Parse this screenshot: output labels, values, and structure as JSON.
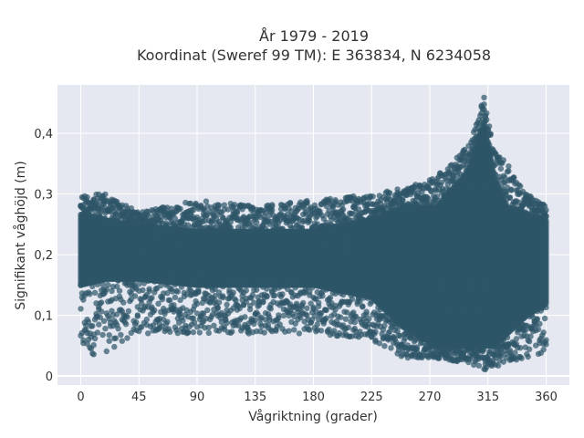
{
  "chart_data": {
    "type": "scatter",
    "title": "År 1979 - 2019",
    "subtitle": "Koordinat (Sweref 99 TM): E 363834, N 6234058",
    "xlabel": "Vågriktning (grader)",
    "ylabel": "Signifikant våghöjd (m)",
    "xlim": [
      -18,
      378
    ],
    "ylim": [
      -0.015,
      0.48
    ],
    "x_ticks": [
      0,
      45,
      90,
      135,
      180,
      225,
      270,
      315,
      360
    ],
    "x_tick_labels": [
      "0",
      "45",
      "90",
      "135",
      "180",
      "225",
      "270",
      "315",
      "360"
    ],
    "y_ticks": [
      0,
      0.1,
      0.2,
      0.3,
      0.4
    ],
    "y_tick_labels": [
      "0",
      "0,1",
      "0,2",
      "0,3",
      "0,4"
    ],
    "grid": true,
    "marker_color": "#2e5568",
    "background_color": "#e5e8f0",
    "density_envelope": [
      {
        "direction": 0,
        "height_low": 0.03,
        "height_core_low": 0.15,
        "height_core_high": 0.27,
        "height_high": 0.3
      },
      {
        "direction": 20,
        "height_low": 0.04,
        "height_core_low": 0.16,
        "height_core_high": 0.26,
        "height_high": 0.3
      },
      {
        "direction": 45,
        "height_low": 0.07,
        "height_core_low": 0.16,
        "height_core_high": 0.25,
        "height_high": 0.27
      },
      {
        "direction": 90,
        "height_low": 0.07,
        "height_core_low": 0.15,
        "height_core_high": 0.24,
        "height_high": 0.29
      },
      {
        "direction": 135,
        "height_low": 0.07,
        "height_core_low": 0.15,
        "height_core_high": 0.24,
        "height_high": 0.28
      },
      {
        "direction": 180,
        "height_low": 0.07,
        "height_core_low": 0.15,
        "height_core_high": 0.24,
        "height_high": 0.29
      },
      {
        "direction": 225,
        "height_low": 0.06,
        "height_core_low": 0.13,
        "height_core_high": 0.26,
        "height_high": 0.3
      },
      {
        "direction": 250,
        "height_low": 0.03,
        "height_core_low": 0.08,
        "height_core_high": 0.28,
        "height_high": 0.31
      },
      {
        "direction": 275,
        "height_low": 0.03,
        "height_core_low": 0.05,
        "height_core_high": 0.28,
        "height_high": 0.33
      },
      {
        "direction": 300,
        "height_low": 0.02,
        "height_core_low": 0.05,
        "height_core_high": 0.34,
        "height_high": 0.38
      },
      {
        "direction": 312,
        "height_low": 0.01,
        "height_core_low": 0.05,
        "height_core_high": 0.42,
        "height_high": 0.46
      },
      {
        "direction": 320,
        "height_low": 0.01,
        "height_core_low": 0.05,
        "height_core_high": 0.33,
        "height_high": 0.37
      },
      {
        "direction": 330,
        "height_low": 0.02,
        "height_core_low": 0.07,
        "height_core_high": 0.28,
        "height_high": 0.35
      },
      {
        "direction": 345,
        "height_low": 0.03,
        "height_core_low": 0.1,
        "height_core_high": 0.27,
        "height_high": 0.3
      },
      {
        "direction": 360,
        "height_low": 0.04,
        "height_core_low": 0.12,
        "height_core_high": 0.26,
        "height_high": 0.28
      }
    ]
  }
}
